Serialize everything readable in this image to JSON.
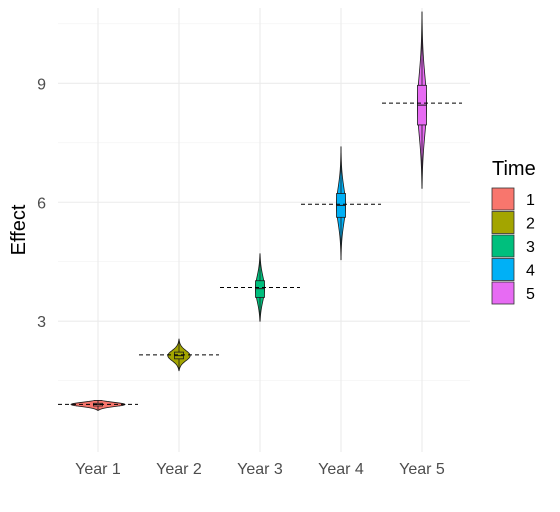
{
  "chart_data": {
    "type": "violin",
    "title": "",
    "xlabel": "",
    "ylabel": "Effect",
    "ylim": [
      -0.3,
      10.9
    ],
    "yticks": [
      3,
      6,
      9
    ],
    "grid": true,
    "categories": [
      "Year 1",
      "Year 2",
      "Year 3",
      "Year 4",
      "Year 5"
    ],
    "series": [
      {
        "time": "1",
        "color": "#F8766D",
        "min": 0.75,
        "q1": 0.86,
        "median": 0.9,
        "q3": 0.93,
        "max": 1.0,
        "mean": 0.9
      },
      {
        "time": "2",
        "color": "#A3A500",
        "min": 1.75,
        "q1": 2.05,
        "median": 2.13,
        "q3": 2.22,
        "max": 2.55,
        "mean": 2.15
      },
      {
        "time": "3",
        "color": "#00BF7D",
        "min": 3.0,
        "q1": 3.6,
        "median": 3.82,
        "q3": 4.02,
        "max": 4.7,
        "mean": 3.85
      },
      {
        "time": "4",
        "color": "#00B0F6",
        "min": 4.55,
        "q1": 5.62,
        "median": 5.92,
        "q3": 6.22,
        "max": 7.4,
        "mean": 5.95
      },
      {
        "time": "5",
        "color": "#E76BF3",
        "min": 6.35,
        "q1": 7.95,
        "median": 8.45,
        "q3": 8.95,
        "max": 10.8,
        "mean": 8.5
      }
    ],
    "legend": {
      "title": "Time",
      "position": "right",
      "entries": [
        "1",
        "2",
        "3",
        "4",
        "5"
      ]
    }
  }
}
